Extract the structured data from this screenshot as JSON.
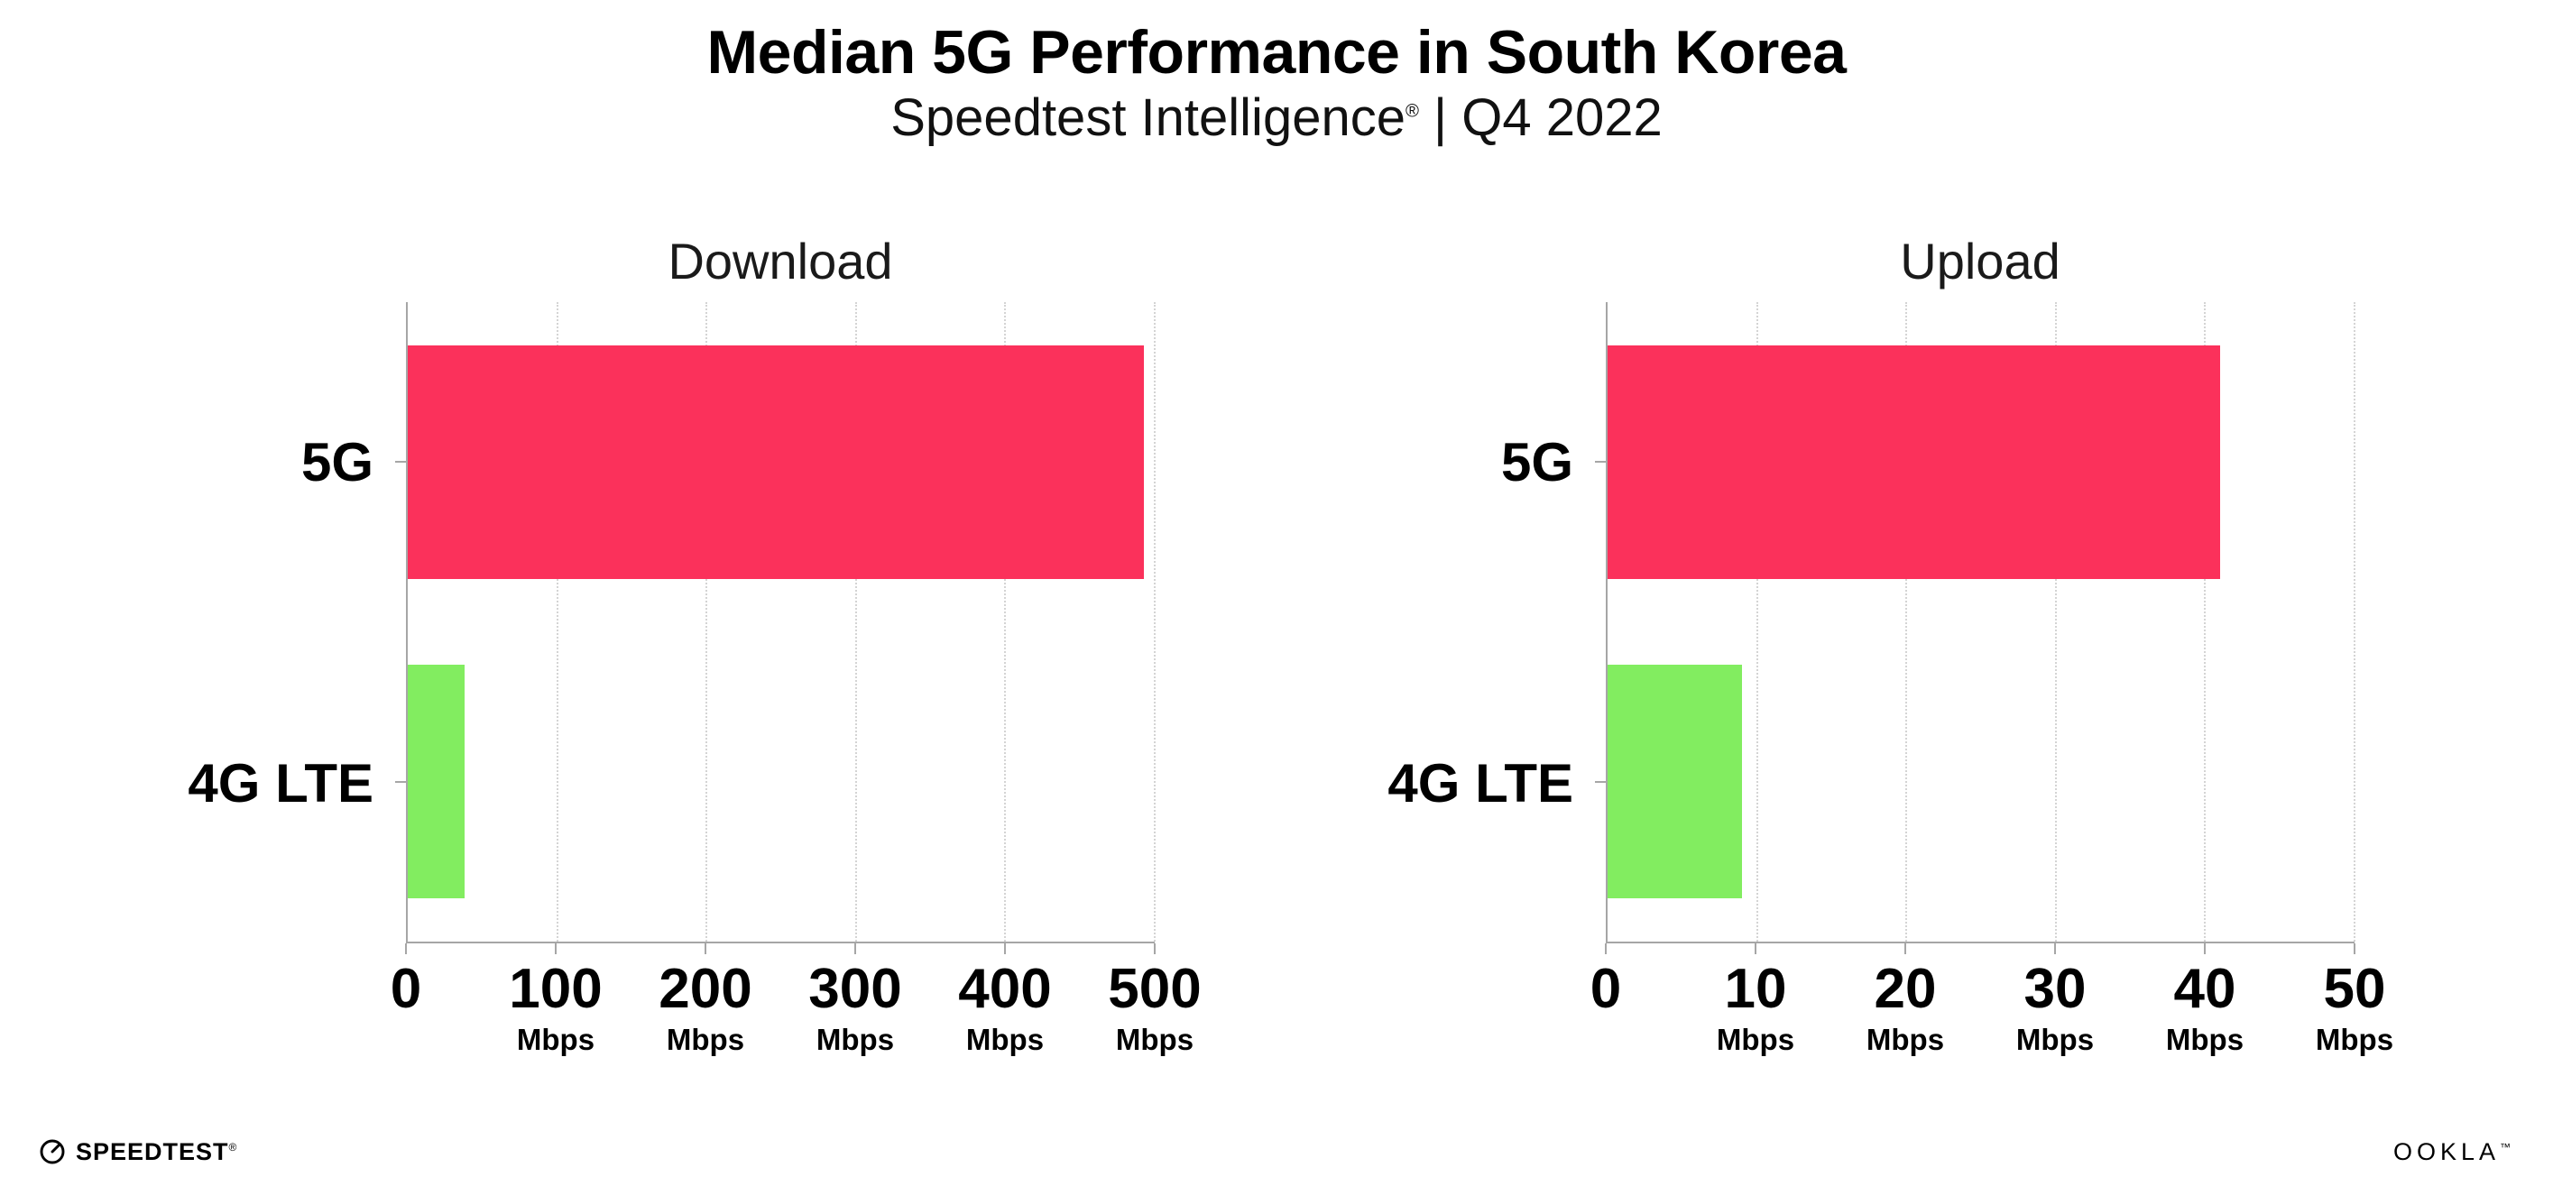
{
  "header": {
    "title": "Median 5G Performance in South Korea",
    "subtitle_brand": "Speedtest Intelligence",
    "subtitle_reg": "®",
    "subtitle_rest": " | Q4 2022"
  },
  "colors": {
    "bar_5g": "#fb315b",
    "bar_4g_lte": "#82ed60",
    "axis": "#a6a6a6",
    "grid": "#d4d4d4",
    "background": "#ffffff"
  },
  "chart_data": [
    {
      "type": "bar",
      "orientation": "horizontal",
      "title": "Download",
      "categories": [
        "5G",
        "4G LTE"
      ],
      "values": [
        493,
        38
      ],
      "bar_colors": [
        "#fb315b",
        "#82ed60"
      ],
      "xlim": [
        0,
        500
      ],
      "ticks": [
        0,
        100,
        200,
        300,
        400,
        500
      ],
      "tick_unit": "Mbps",
      "grid": "dotted-vertical",
      "legend": "none"
    },
    {
      "type": "bar",
      "orientation": "horizontal",
      "title": "Upload",
      "categories": [
        "5G",
        "4G LTE"
      ],
      "values": [
        41,
        9
      ],
      "bar_colors": [
        "#fb315b",
        "#82ed60"
      ],
      "xlim": [
        0,
        50
      ],
      "ticks": [
        0,
        10,
        20,
        30,
        40,
        50
      ],
      "tick_unit": "Mbps",
      "grid": "dotted-vertical",
      "legend": "none"
    }
  ],
  "footer": {
    "speedtest_label": "SPEEDTEST",
    "speedtest_mark": "®",
    "ookla_label": "OOKLA",
    "ookla_mark": "™"
  }
}
